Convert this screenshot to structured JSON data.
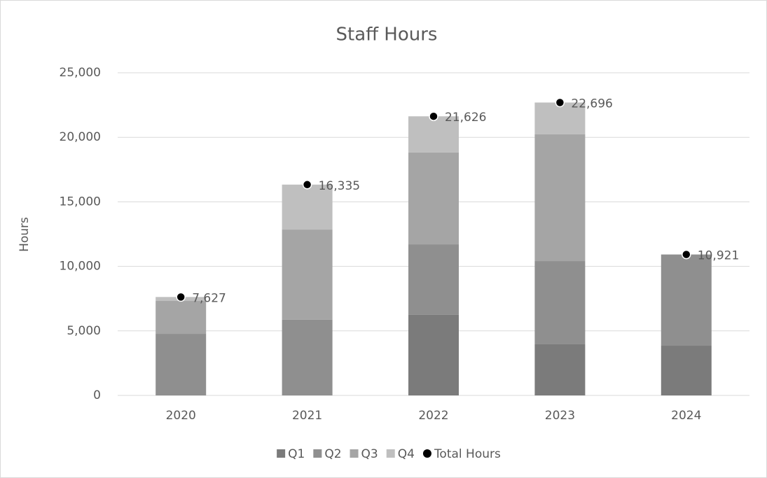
{
  "chart_data": {
    "type": "bar",
    "stacked": true,
    "title": "Staff Hours",
    "y_label": "Hours",
    "categories": [
      "2020",
      "2021",
      "2022",
      "2023",
      "2024"
    ],
    "series": [
      {
        "name": "Q1",
        "color": "#7b7b7b",
        "values": [
          0,
          0,
          6240,
          3960,
          3850
        ]
      },
      {
        "name": "Q2",
        "color": "#8f8f8f",
        "values": [
          4770,
          5860,
          5470,
          6450,
          7071
        ]
      },
      {
        "name": "Q3",
        "color": "#a5a5a5",
        "values": [
          2550,
          6990,
          7110,
          9820,
          0
        ]
      },
      {
        "name": "Q4",
        "color": "#bfbfbf",
        "values": [
          307,
          3485,
          2806,
          2466,
          0
        ]
      },
      {
        "name": "Total Hours",
        "type": "scatter",
        "color": "#000000",
        "values": [
          7627,
          16335,
          21626,
          22696,
          10921
        ],
        "value_labels": [
          "7,627",
          "16,335",
          "21,626",
          "22,696",
          "10,921"
        ]
      }
    ],
    "ylim": [
      0,
      25000
    ],
    "yticks": [
      0,
      {
        "value": 5000,
        "label": "5,000"
      },
      {
        "value": 10000,
        "label": "10,000"
      },
      {
        "value": 15000,
        "label": "15,000"
      },
      {
        "value": 20000,
        "label": "20,000"
      },
      {
        "value": 25000,
        "label": "25,000"
      }
    ],
    "grid": true,
    "legend": "bottom"
  }
}
